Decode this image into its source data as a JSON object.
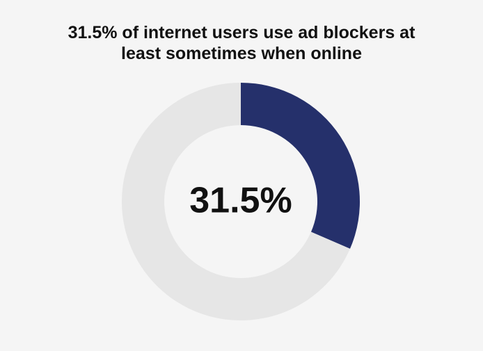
{
  "chart_data": {
    "type": "donut",
    "title": "31.5% of internet users use ad blockers at least sometimes when online",
    "values": [
      31.5,
      68.5
    ],
    "value_labels": [
      "31.5%",
      null
    ],
    "colors": [
      "#25306b",
      "#e6e6e6"
    ]
  }
}
